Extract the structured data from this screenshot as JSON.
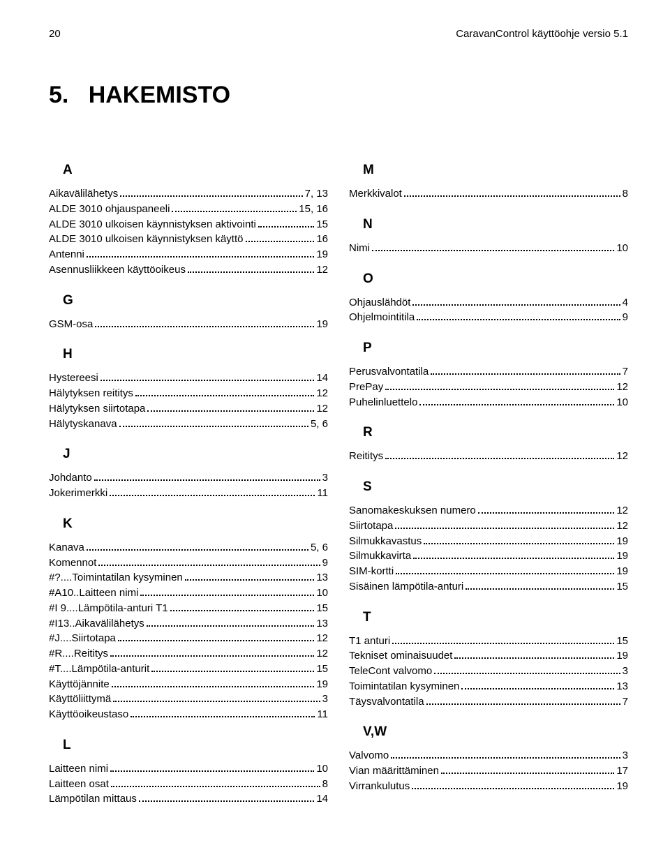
{
  "header": {
    "page_num": "20",
    "doc_title": "CaravanControl käyttöohje versio 5.1"
  },
  "heading": {
    "num": "5.",
    "title": "HAKEMISTO"
  },
  "colors": {
    "text": "#000000",
    "bg": "#ffffff"
  },
  "fonts": {
    "body_size": 15,
    "letter_size": 19,
    "h1_size": 34
  },
  "left": [
    {
      "letter": "A"
    },
    {
      "label": "Aikavälilähetys",
      "page": "7, 13"
    },
    {
      "label": "ALDE 3010 ohjauspaneeli",
      "page": "15, 16"
    },
    {
      "label": "ALDE 3010 ulkoisen käynnistyksen aktivointi",
      "page": "15"
    },
    {
      "label": "ALDE 3010 ulkoisen käynnistyksen käyttö",
      "page": "16"
    },
    {
      "label": "Antenni",
      "page": "19"
    },
    {
      "label": "Asennusliikkeen käyttöoikeus",
      "page": "12"
    },
    {
      "letter": "G"
    },
    {
      "label": "GSM-osa",
      "page": "19"
    },
    {
      "letter": "H"
    },
    {
      "label": "Hystereesi",
      "page": "14"
    },
    {
      "label": "Hälytyksen reititys",
      "page": "12"
    },
    {
      "label": "Hälytyksen siirtotapa",
      "page": "12"
    },
    {
      "label": "Hälytyskanava",
      "page": "5, 6"
    },
    {
      "letter": "J"
    },
    {
      "label": "Johdanto",
      "page": "3"
    },
    {
      "label": "Jokerimerkki",
      "page": "11"
    },
    {
      "letter": "K"
    },
    {
      "label": "Kanava",
      "page": "5, 6"
    },
    {
      "label": "Komennot",
      "page": "9"
    },
    {
      "label": "#?....Toimintatilan kysyminen",
      "page": "13"
    },
    {
      "label": "#A10..Laitteen nimi",
      "page": "10"
    },
    {
      "label": "#I 9....Lämpötila-anturi T1",
      "page": "15"
    },
    {
      "label": "#I13..Aikavälilähetys",
      "page": "13"
    },
    {
      "label": "#J....Siirtotapa",
      "page": "12"
    },
    {
      "label": "#R....Reititys",
      "page": "12"
    },
    {
      "label": "#T....Lämpötila-anturit",
      "page": "15"
    },
    {
      "label": "Käyttöjännite",
      "page": "19"
    },
    {
      "label": "Käyttöliittymä",
      "page": "3"
    },
    {
      "label": "Käyttöoikeustaso",
      "page": "11"
    },
    {
      "letter": "L"
    },
    {
      "label": "Laitteen nimi",
      "page": "10"
    },
    {
      "label": "Laitteen osat",
      "page": "8"
    },
    {
      "label": "Lämpötilan mittaus",
      "page": "14"
    }
  ],
  "right": [
    {
      "letter": "M"
    },
    {
      "label": "Merkkivalot",
      "page": "8"
    },
    {
      "letter": "N"
    },
    {
      "label": "Nimi",
      "page": "10"
    },
    {
      "letter": "O"
    },
    {
      "label": "Ohjauslähdöt",
      "page": "4"
    },
    {
      "label": "Ohjelmointitila",
      "page": "9"
    },
    {
      "letter": "P"
    },
    {
      "label": "Perusvalvontatila",
      "page": "7"
    },
    {
      "label": "PrePay",
      "page": "12"
    },
    {
      "label": "Puhelinluettelo",
      "page": "10"
    },
    {
      "letter": "R"
    },
    {
      "label": "Reititys",
      "page": "12"
    },
    {
      "letter": "S"
    },
    {
      "label": "Sanomakeskuksen numero",
      "page": "12"
    },
    {
      "label": "Siirtotapa",
      "page": "12"
    },
    {
      "label": "Silmukkavastus",
      "page": "19"
    },
    {
      "label": "Silmukkavirta",
      "page": "19"
    },
    {
      "label": "SIM-kortti",
      "page": "19"
    },
    {
      "label": "Sisäinen lämpötila-anturi",
      "page": "15"
    },
    {
      "letter": "T"
    },
    {
      "label": "T1 anturi",
      "page": "15"
    },
    {
      "label": "Tekniset ominaisuudet",
      "page": "19"
    },
    {
      "label": "TeleCont valvomo",
      "page": "3"
    },
    {
      "label": "Toimintatilan kysyminen",
      "page": "13"
    },
    {
      "label": "Täysvalvontatila",
      "page": "7"
    },
    {
      "letter": "V,W"
    },
    {
      "label": "Valvomo",
      "page": "3"
    },
    {
      "label": "Vian määrittäminen",
      "page": "17"
    },
    {
      "label": "Virrankulutus",
      "page": "19"
    }
  ]
}
